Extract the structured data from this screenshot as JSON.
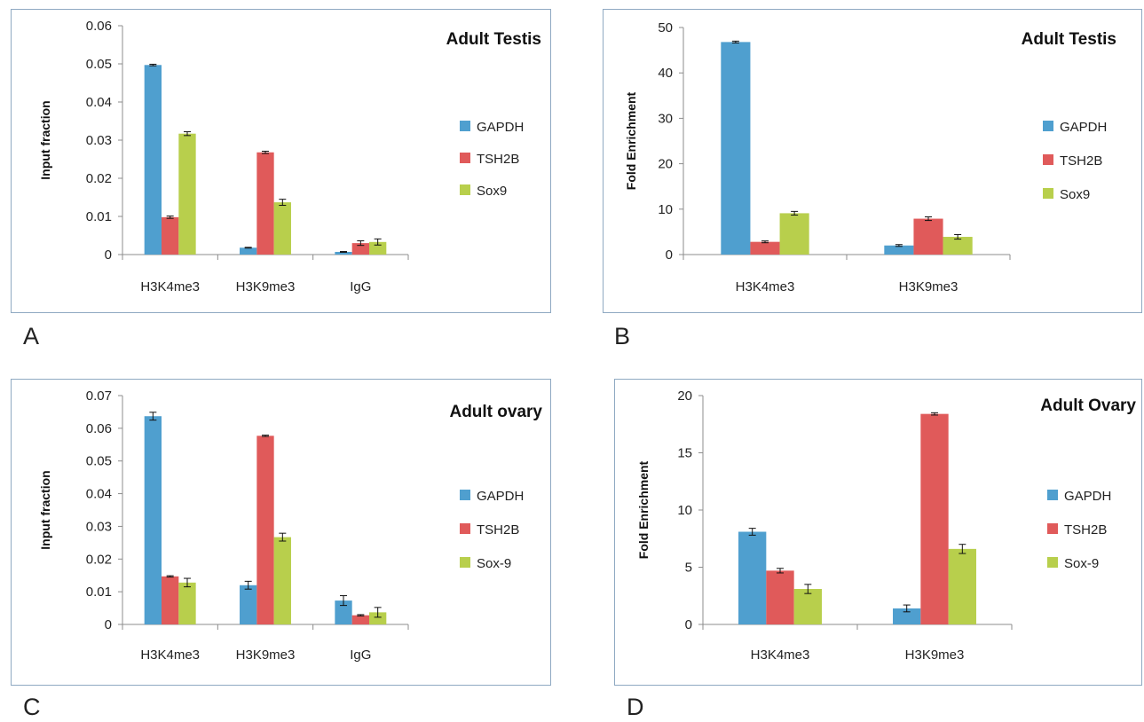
{
  "colors": {
    "GAPDH": "#4f9fcf",
    "TSH2B": "#e05a5a",
    "Sox9": "#b8cf4c",
    "frame": "#8fa9c2"
  },
  "chart_data": [
    {
      "panel": "A",
      "type": "bar",
      "title": "Adult Testis",
      "xlabel": "",
      "ylabel": "Input fraction",
      "ylim": [
        0,
        0.06
      ],
      "yticks": [
        "0",
        "0.01",
        "0.02",
        "0.03",
        "0.04",
        "0.05",
        "0.06"
      ],
      "tick_step": 0.01,
      "categories": [
        "H3K4me3",
        "H3K9me3",
        "IgG"
      ],
      "series": [
        {
          "name": "GAPDH",
          "values": [
            0.0497,
            0.0018,
            0.0007
          ],
          "errors": [
            0.0002,
            0.0001,
            0.0001
          ]
        },
        {
          "name": "TSH2B",
          "values": [
            0.0098,
            0.0268,
            0.003
          ],
          "errors": [
            0.0003,
            0.0003,
            0.0006
          ]
        },
        {
          "name": "Sox9",
          "values": [
            0.0317,
            0.0137,
            0.0033
          ],
          "errors": [
            0.0005,
            0.0008,
            0.0008
          ]
        }
      ],
      "grid": false,
      "legend": "right"
    },
    {
      "panel": "B",
      "type": "bar",
      "title": "Adult Testis",
      "xlabel": "",
      "ylabel": "Fold Enrichment",
      "ylim": [
        0,
        50
      ],
      "yticks": [
        "0",
        "10",
        "20",
        "30",
        "40",
        "50"
      ],
      "tick_step": 10,
      "categories": [
        "H3K4me3",
        "H3K9me3"
      ],
      "series": [
        {
          "name": "GAPDH",
          "values": [
            46.8,
            2.0
          ],
          "errors": [
            0.2,
            0.2
          ]
        },
        {
          "name": "TSH2B",
          "values": [
            2.8,
            7.9
          ],
          "errors": [
            0.2,
            0.4
          ]
        },
        {
          "name": "Sox9",
          "values": [
            9.1,
            3.9
          ],
          "errors": [
            0.4,
            0.5
          ]
        }
      ],
      "grid": false,
      "legend": "right"
    },
    {
      "panel": "C",
      "type": "bar",
      "title": "Adult ovary",
      "xlabel": "",
      "ylabel": "Input fraction",
      "ylim": [
        0,
        0.07
      ],
      "yticks": [
        "0",
        "0.01",
        "0.02",
        "0.03",
        "0.04",
        "0.05",
        "0.06",
        "0.07"
      ],
      "tick_step": 0.01,
      "categories": [
        "H3K4me3",
        "H3K9me3",
        "IgG"
      ],
      "series": [
        {
          "name": "GAPDH",
          "values": [
            0.0637,
            0.012,
            0.0073
          ],
          "errors": [
            0.0012,
            0.0012,
            0.0015
          ]
        },
        {
          "name": "TSH2B",
          "values": [
            0.0147,
            0.0577,
            0.0028
          ],
          "errors": [
            0.0002,
            0.0002,
            0.0002
          ]
        },
        {
          "name": "Sox-9",
          "values": [
            0.0128,
            0.0267,
            0.0037
          ],
          "errors": [
            0.0013,
            0.0012,
            0.0015
          ]
        }
      ],
      "grid": false,
      "legend": "right"
    },
    {
      "panel": "D",
      "type": "bar",
      "title": "Adult Ovary",
      "xlabel": "",
      "ylabel": "Fold Enrichment",
      "ylim": [
        0,
        20
      ],
      "yticks": [
        "0",
        "5",
        "10",
        "15",
        "20"
      ],
      "tick_step": 5,
      "categories": [
        "H3K4me3",
        "H3K9me3"
      ],
      "series": [
        {
          "name": "GAPDH",
          "values": [
            8.1,
            1.4
          ],
          "errors": [
            0.3,
            0.3
          ]
        },
        {
          "name": "TSH2B",
          "values": [
            4.7,
            18.4
          ],
          "errors": [
            0.2,
            0.1
          ]
        },
        {
          "name": "Sox-9",
          "values": [
            3.1,
            6.6
          ],
          "errors": [
            0.4,
            0.4
          ]
        }
      ],
      "grid": false,
      "legend": "right"
    }
  ]
}
